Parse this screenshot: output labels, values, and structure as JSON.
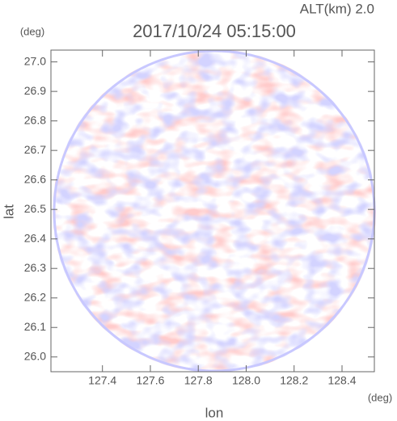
{
  "chart_data": {
    "type": "heatmap",
    "annotation": "ALT(km) 2.0",
    "title": "2017/10/24 05:15:00",
    "xlabel": "lon",
    "ylabel": "lat",
    "x_unit": "(deg)",
    "y_unit": "(deg)",
    "xlim": [
      127.185,
      128.535
    ],
    "ylim": [
      25.95,
      27.04
    ],
    "xticks": [
      127.4,
      127.6,
      127.8,
      {
        "value": 128.0,
        "label": "128.0"
      },
      128.2,
      128.4
    ],
    "yticks": [
      {
        "value": 26.0,
        "label": "26.0"
      },
      26.1,
      26.2,
      26.3,
      26.4,
      26.5,
      26.6,
      26.7,
      26.8,
      26.9,
      {
        "value": 27.0,
        "label": "27.0"
      }
    ]
  }
}
